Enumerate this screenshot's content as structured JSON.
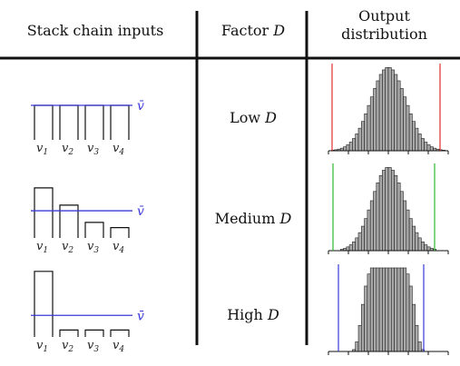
{
  "headers": {
    "stack": "Stack chain inputs",
    "factor_prefix": "Factor ",
    "factor_symbol": "D",
    "output_line1": "Output",
    "output_line2": "distribution"
  },
  "rows": [
    {
      "label": "Low",
      "symbol": "D",
      "mean_label": "v̄",
      "inputs": [
        {
          "name": "v1",
          "value": 1.0
        },
        {
          "name": "v2",
          "value": 1.0
        },
        {
          "name": "v3",
          "value": 1.0
        },
        {
          "name": "v4",
          "value": 1.0
        }
      ],
      "boundary_color": "#e03030",
      "shape": "wide"
    },
    {
      "label": "Medium",
      "symbol": "D",
      "mean_label": "v̄",
      "inputs": [
        {
          "name": "v1",
          "value": 1.45
        },
        {
          "name": "v2",
          "value": 0.95
        },
        {
          "name": "v3",
          "value": 0.45
        },
        {
          "name": "v4",
          "value": 0.3
        }
      ],
      "boundary_color": "#2db82d",
      "shape": "medium"
    },
    {
      "label": "High",
      "symbol": "D",
      "mean_label": "v̄",
      "inputs": [
        {
          "name": "v1",
          "value": 1.9
        },
        {
          "name": "v2",
          "value": 0.2
        },
        {
          "name": "v3",
          "value": 0.2
        },
        {
          "name": "v4",
          "value": 0.2
        }
      ],
      "boundary_color": "#3a3ad8",
      "shape": "flat"
    }
  ],
  "colors": {
    "mean_line": "#3a3ad8",
    "histogram_fill": "#a9a9a9",
    "divider": "#111111"
  }
}
